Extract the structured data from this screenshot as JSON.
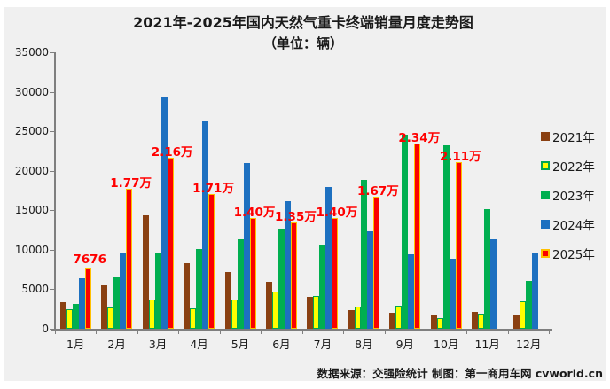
{
  "panel_bg": "#f0f0f0",
  "footer": {
    "source": "数据来源：交强险统计  制图：第一商用车网 cvworld.cn"
  },
  "chart_data": {
    "type": "bar",
    "title": "2021年-2025年国内天然气重卡终端销量月度走势图",
    "subtitle": "（单位：辆）",
    "categories": [
      "1月",
      "2月",
      "3月",
      "4月",
      "5月",
      "6月",
      "7月",
      "8月",
      "9月",
      "10月",
      "11月",
      "12月"
    ],
    "series": [
      {
        "name": "2021年",
        "color": "#8A4012",
        "border": null,
        "values": [
          3400,
          5500,
          14400,
          8300,
          7200,
          5900,
          4000,
          2400,
          2000,
          1700,
          2100,
          1700
        ]
      },
      {
        "name": "2022年",
        "color": "#FFFF00",
        "border": "#00A651",
        "values": [
          2500,
          2700,
          3700,
          2600,
          3700,
          4700,
          4200,
          2800,
          2900,
          1300,
          1900,
          3500
        ]
      },
      {
        "name": "2023年",
        "color": "#00AF50",
        "border": null,
        "values": [
          3100,
          6500,
          9500,
          10100,
          11300,
          12700,
          10500,
          18900,
          24600,
          23200,
          15100,
          6100
        ]
      },
      {
        "name": "2024年",
        "color": "#1D70C0",
        "border": null,
        "values": [
          6400,
          9600,
          29300,
          26300,
          21000,
          16100,
          17900,
          12300,
          9400,
          8900,
          11300,
          9600
        ]
      },
      {
        "name": "2025年",
        "color": "#FB0000",
        "border": "#FFC000",
        "values": [
          7676,
          17700,
          21600,
          17100,
          14000,
          13500,
          14000,
          16700,
          23400,
          21100,
          null,
          null
        ],
        "labels": [
          "7676",
          "1.77万",
          "2.16万",
          "1.71万",
          "1.40万",
          "1.35万",
          "1.40万",
          "1.67万",
          "2.34万",
          "2.11万",
          null,
          null
        ]
      }
    ],
    "ylim": [
      0,
      35000
    ],
    "yticks": [
      0,
      5000,
      10000,
      15000,
      20000,
      25000,
      30000,
      35000
    ],
    "data_label_color": "#FF0000",
    "axis_color": "#7f7f7f",
    "grid": false,
    "legend_position": "right"
  }
}
